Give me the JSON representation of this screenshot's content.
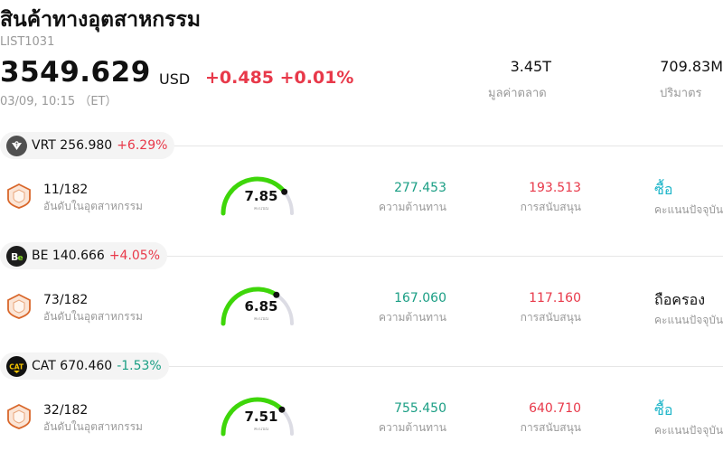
{
  "header": {
    "title": "สินค้าทางอุตสาหกรรม",
    "code": "LIST1031",
    "price": "3549.629",
    "currency": "USD",
    "change": "+0.485 +0.01%",
    "timestamp": "03/09, 10:15 （ET）",
    "market_cap_value": "3.45T",
    "market_cap_label": "มูลค่าตลาด",
    "volume_value": "709.83M",
    "volume_label": "ปริมาตร"
  },
  "colors": {
    "up": "#e8394a",
    "down": "#1a9e84",
    "buy": "#1ab4c8",
    "gauge": "#3ed60a"
  },
  "stocks": [
    {
      "ticker": "VRT",
      "price": "256.980",
      "change": "+6.29%",
      "direction": "up",
      "logo_icon": "vrt-logo-icon",
      "rank": "11/182",
      "rank_label": "อันดับในอุตสาหกรรม",
      "score": "7.85",
      "score_fraction": 0.785,
      "score_label": "คะแนน",
      "resistance": "277.453",
      "resistance_label": "ความต้านทาน",
      "support": "193.513",
      "support_label": "การสนับสนุน",
      "rating": "ซื้อ",
      "rating_type": "buy",
      "rating_label": "คะแนนปัจจุบัน"
    },
    {
      "ticker": "BE",
      "price": "140.666",
      "change": "+4.05%",
      "direction": "up",
      "logo_icon": "be-logo-icon",
      "rank": "73/182",
      "rank_label": "อันดับในอุตสาหกรรม",
      "score": "6.85",
      "score_fraction": 0.685,
      "score_label": "คะแนน",
      "resistance": "167.060",
      "resistance_label": "ความต้านทาน",
      "support": "117.160",
      "support_label": "การสนับสนุน",
      "rating": "ถือครอง",
      "rating_type": "hold",
      "rating_label": "คะแนนปัจจุบัน"
    },
    {
      "ticker": "CAT",
      "price": "670.460",
      "change": "-1.53%",
      "direction": "down",
      "logo_icon": "cat-logo-icon",
      "rank": "32/182",
      "rank_label": "อันดับในอุตสาหกรรม",
      "score": "7.51",
      "score_fraction": 0.751,
      "score_label": "คะแนน",
      "resistance": "755.450",
      "resistance_label": "ความต้านทาน",
      "support": "640.710",
      "support_label": "การสนับสนุน",
      "rating": "ซื้อ",
      "rating_type": "buy",
      "rating_label": "คะแนนปัจจุบัน"
    }
  ]
}
